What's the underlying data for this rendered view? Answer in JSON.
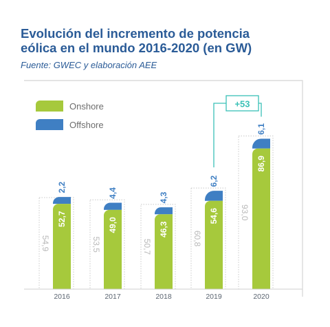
{
  "header": {
    "title_line1": "Evolución del incremento de potencia",
    "title_line2": "eólica en el mundo 2016-2020 (en GW)",
    "source": "Fuente: GWEC y elaboración AEE"
  },
  "colors": {
    "onshore": "#a6c93c",
    "offshore": "#3f7fc3",
    "title": "#2a5b97",
    "total_text": "#b8b8b8",
    "accent": "#39c0b6"
  },
  "chart_data": {
    "type": "bar",
    "stacked": true,
    "categories": [
      "2016",
      "2017",
      "2018",
      "2019",
      "2020"
    ],
    "series": [
      {
        "name": "Onshore",
        "values": [
          52.7,
          49.0,
          46.3,
          54.6,
          86.9
        ],
        "labels": [
          "52,7",
          "49,0",
          "46,3",
          "54,6",
          "86,9"
        ]
      },
      {
        "name": "Offshore",
        "values": [
          2.2,
          4.4,
          4.3,
          6.2,
          6.1
        ],
        "labels": [
          "2,2",
          "4,4",
          "4,3",
          "6,2",
          "6,1"
        ]
      }
    ],
    "totals": [
      54.9,
      53.5,
      50.7,
      60.8,
      93.0
    ],
    "total_labels": [
      "54,9",
      "53,5",
      "50,7",
      "60,8",
      "93,0"
    ],
    "annotation": {
      "text": "+53",
      "from": "2019",
      "to": "2020"
    },
    "legend": {
      "position": "top-left",
      "items": [
        "Onshore",
        "Offshore"
      ]
    },
    "title": "Evolución del incremento de potencia eólica en el mundo 2016-2020 (en GW)",
    "xlabel": "",
    "ylabel": "",
    "ylim": [
      0,
      100
    ],
    "grid": false
  }
}
